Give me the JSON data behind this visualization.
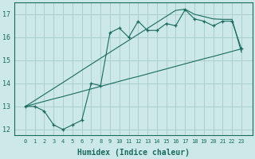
{
  "xlabel": "Humidex (Indice chaleur)",
  "x_values": [
    0,
    1,
    2,
    3,
    4,
    5,
    6,
    7,
    8,
    9,
    10,
    11,
    12,
    13,
    14,
    15,
    16,
    17,
    18,
    19,
    20,
    21,
    22,
    23
  ],
  "y_data": [
    13.0,
    13.0,
    12.8,
    12.2,
    12.0,
    12.2,
    12.4,
    14.0,
    13.9,
    16.2,
    16.4,
    16.0,
    16.7,
    16.3,
    16.3,
    16.6,
    16.5,
    17.2,
    16.8,
    16.7,
    16.5,
    16.7,
    16.7,
    15.5
  ],
  "y_line_lower": [
    13.0,
    13.11,
    13.22,
    13.33,
    13.43,
    13.54,
    13.65,
    13.76,
    13.87,
    13.98,
    14.09,
    14.2,
    14.3,
    14.41,
    14.52,
    14.63,
    14.74,
    14.85,
    14.96,
    15.07,
    15.17,
    15.28,
    15.39,
    15.5
  ],
  "y_line_upper": [
    13.0,
    13.26,
    13.52,
    13.78,
    14.04,
    14.3,
    14.57,
    14.83,
    15.09,
    15.35,
    15.61,
    15.87,
    16.13,
    16.39,
    16.65,
    16.91,
    17.17,
    17.22,
    17.0,
    16.9,
    16.8,
    16.78,
    16.78,
    15.35
  ],
  "line_color": "#1a6b5e",
  "bg_color": "#cce8e8",
  "grid_color": "#aacfcf",
  "ylim": [
    11.75,
    17.5
  ],
  "yticks": [
    12,
    13,
    14,
    15,
    16,
    17
  ],
  "xticks": [
    0,
    1,
    2,
    3,
    4,
    5,
    6,
    7,
    8,
    9,
    10,
    11,
    12,
    13,
    14,
    15,
    16,
    17,
    18,
    19,
    20,
    21,
    22,
    23
  ]
}
